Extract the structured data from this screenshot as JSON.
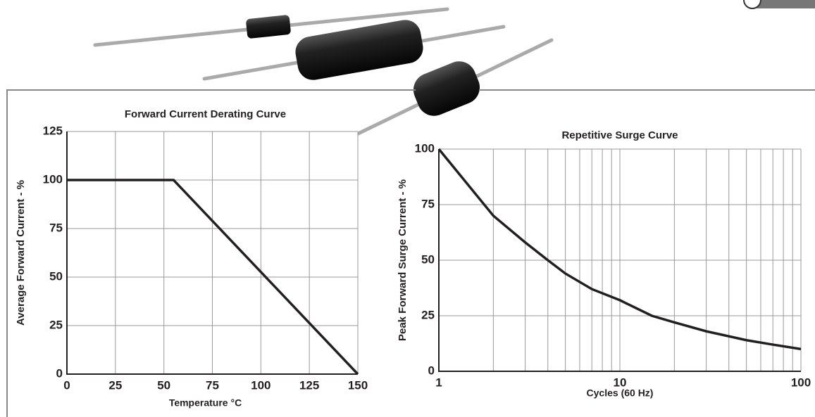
{
  "chart_data": [
    {
      "type": "line",
      "title": "Forward Current Derating Curve",
      "x_label": "Temperature °C",
      "y_label": "Average Forward Current - %",
      "x": [
        0,
        55,
        150
      ],
      "values": [
        100,
        100,
        0
      ],
      "color": "#231f20",
      "xlim": [
        0,
        150
      ],
      "xticks": [
        0,
        25,
        50,
        75,
        100,
        125,
        150
      ],
      "ylim": [
        0,
        125
      ],
      "yticks": [
        0,
        25,
        50,
        75,
        100,
        125
      ],
      "grid": true,
      "x_log": false
    },
    {
      "type": "line",
      "title": "Repetitive Surge Curve",
      "x_label": "Cycles (60 Hz)",
      "y_label": "Peak Forward Surge Current - %",
      "x": [
        1,
        2,
        3,
        4,
        5,
        7,
        10,
        15,
        20,
        30,
        50,
        70,
        100
      ],
      "values": [
        100,
        70,
        58,
        50,
        44,
        37,
        32,
        25,
        22,
        18,
        14,
        12,
        10
      ],
      "color": "#231f20",
      "xlim": [
        1,
        100
      ],
      "xticks": [
        1,
        10,
        100
      ],
      "x_minor_ticks": [
        2,
        3,
        4,
        5,
        6,
        7,
        8,
        9,
        20,
        30,
        40,
        50,
        60,
        70,
        80,
        90
      ],
      "ylim": [
        0,
        100
      ],
      "yticks": [
        0,
        25,
        50,
        75,
        100
      ],
      "grid": true,
      "x_log": true
    }
  ]
}
